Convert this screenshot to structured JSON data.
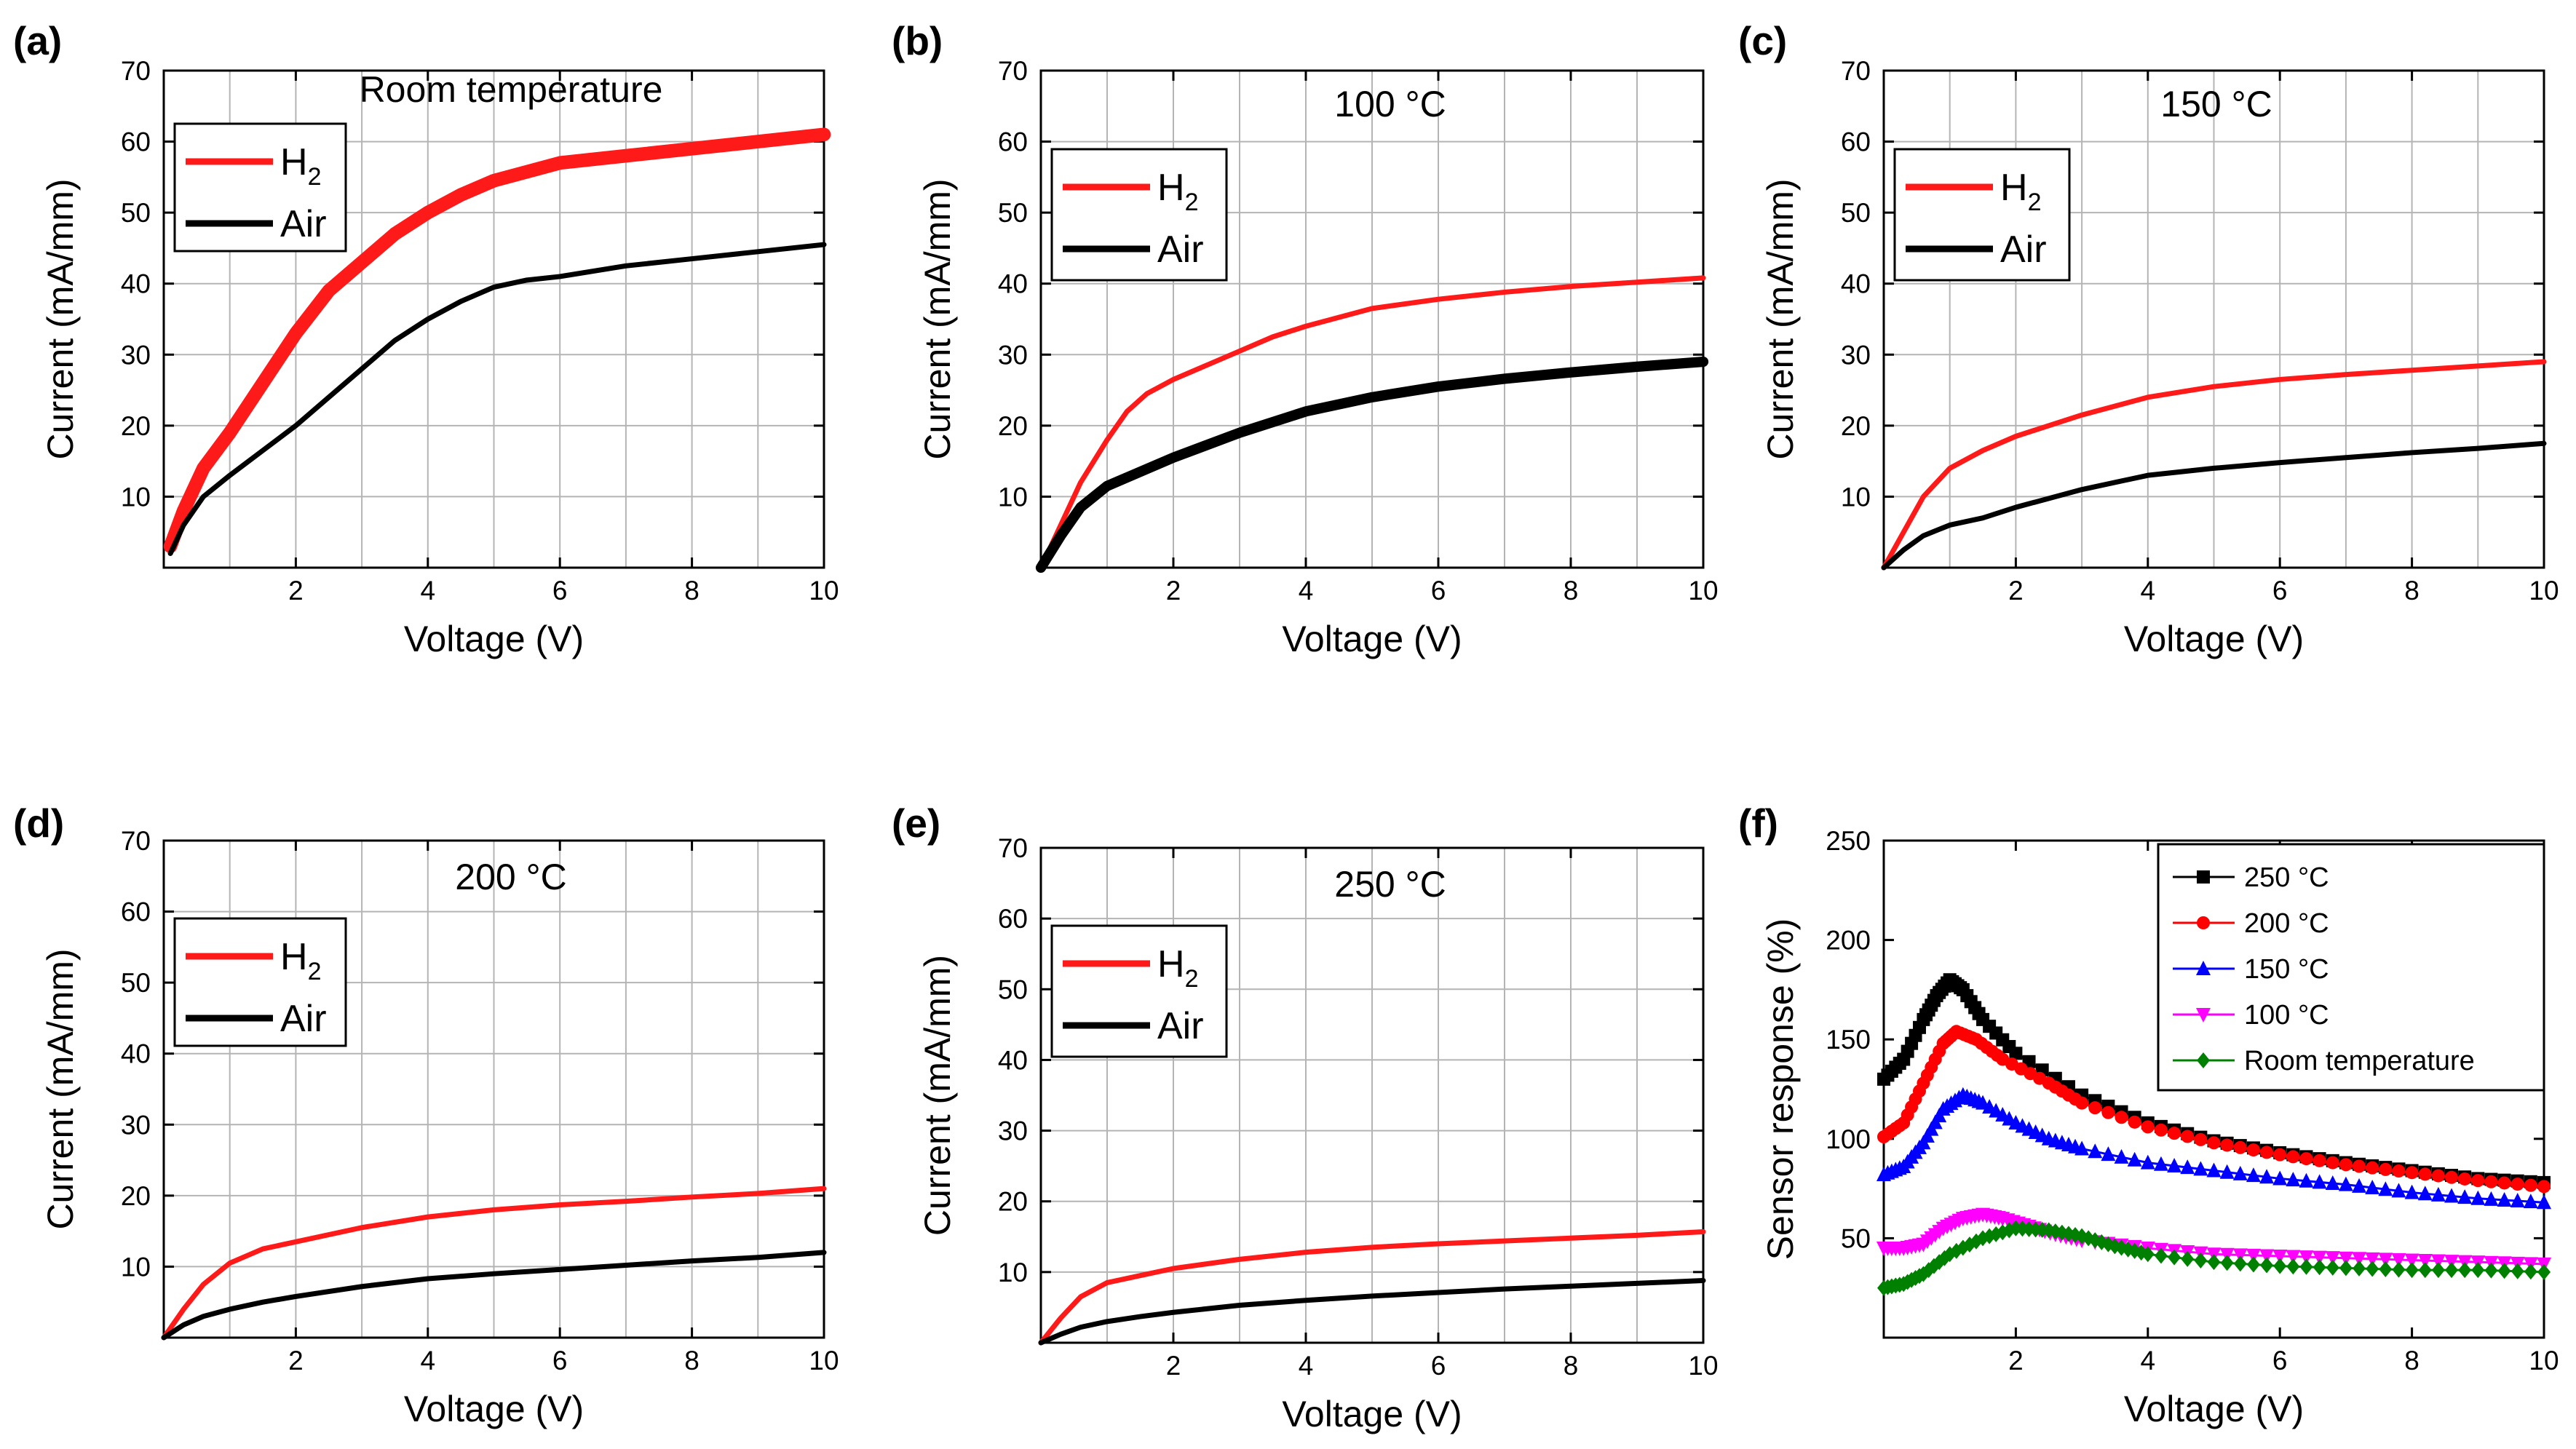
{
  "figure": {
    "panels": [
      "(a)",
      "(b)",
      "(c)",
      "(d)",
      "(e)",
      "(f)"
    ]
  },
  "chart_data": [
    {
      "panel": "(a)",
      "type": "line",
      "title": "Room temperature",
      "xlabel": "Voltage (V)",
      "ylabel": "Current (mA/mm)",
      "xlim": [
        0,
        10
      ],
      "ylim": [
        0,
        70
      ],
      "xticks": [
        "2",
        "4",
        "6",
        "8",
        "10"
      ],
      "yticks": [
        "10",
        "20",
        "30",
        "40",
        "50",
        "60",
        "70"
      ],
      "grid": true,
      "legend": [
        "H2",
        "Air"
      ],
      "series": [
        {
          "name": "H2",
          "color": "#ff1a1a",
          "band": 1.3,
          "x": [
            0.1,
            0.3,
            0.6,
            1,
            1.5,
            2,
            2.5,
            3,
            3.5,
            4,
            4.5,
            5,
            6,
            7,
            8,
            9,
            10
          ],
          "y": [
            3,
            8,
            14,
            19,
            26,
            33,
            39,
            43,
            47,
            50,
            52.5,
            54.5,
            57,
            58,
            59,
            60,
            61
          ]
        },
        {
          "name": "Air",
          "color": "#000000",
          "band": 0,
          "x": [
            0.1,
            0.3,
            0.6,
            1,
            1.5,
            2,
            2.5,
            3,
            3.5,
            4,
            4.5,
            5,
            5.5,
            6,
            7,
            8,
            9,
            10
          ],
          "y": [
            2,
            6,
            10,
            13,
            16.5,
            20,
            24,
            28,
            32,
            35,
            37.5,
            39.5,
            40.5,
            41,
            42.5,
            43.5,
            44.5,
            45.5
          ]
        }
      ]
    },
    {
      "panel": "(b)",
      "type": "line",
      "title": "100 °C",
      "xlabel": "Voltage (V)",
      "ylabel": "Current (mA/mm)",
      "xlim": [
        0,
        10
      ],
      "ylim": [
        0,
        70
      ],
      "xticks": [
        "2",
        "4",
        "6",
        "8",
        "10"
      ],
      "yticks": [
        "10",
        "20",
        "30",
        "40",
        "50",
        "60",
        "70"
      ],
      "grid": true,
      "legend": [
        "H2",
        "Air"
      ],
      "series": [
        {
          "name": "H2",
          "color": "#ff1a1a",
          "band": 0,
          "x": [
            0,
            0.3,
            0.6,
            1,
            1.3,
            1.6,
            2,
            2.5,
            3,
            3.5,
            4,
            5,
            6,
            7,
            8,
            9,
            10
          ],
          "y": [
            0,
            6,
            12,
            18,
            22,
            24.5,
            26.5,
            28.5,
            30.5,
            32.5,
            34,
            36.5,
            37.8,
            38.8,
            39.6,
            40.2,
            40.8
          ]
        },
        {
          "name": "Air",
          "color": "#000000",
          "band": 0.8,
          "x": [
            0,
            0.3,
            0.6,
            1,
            1.5,
            2,
            3,
            4,
            5,
            6,
            7,
            8,
            9,
            10
          ],
          "y": [
            0,
            4.5,
            8.5,
            11.5,
            13.5,
            15.5,
            19,
            22,
            24,
            25.5,
            26.6,
            27.5,
            28.3,
            29
          ]
        }
      ]
    },
    {
      "panel": "(c)",
      "type": "line",
      "title": "150 °C",
      "xlabel": "Voltage (V)",
      "ylabel": "Current (mA/mm)",
      "xlim": [
        0,
        10
      ],
      "ylim": [
        0,
        70
      ],
      "xticks": [
        "2",
        "4",
        "6",
        "8",
        "10"
      ],
      "yticks": [
        "10",
        "20",
        "30",
        "40",
        "50",
        "60",
        "70"
      ],
      "grid": true,
      "legend": [
        "H2",
        "Air"
      ],
      "series": [
        {
          "name": "H2",
          "color": "#ff1a1a",
          "band": 0,
          "x": [
            0,
            0.3,
            0.6,
            1,
            1.5,
            2,
            3,
            4,
            5,
            6,
            7,
            8,
            9,
            10
          ],
          "y": [
            0,
            5,
            10,
            14,
            16.5,
            18.5,
            21.5,
            24,
            25.5,
            26.5,
            27.2,
            27.8,
            28.4,
            29
          ]
        },
        {
          "name": "Air",
          "color": "#000000",
          "band": 0,
          "x": [
            0,
            0.3,
            0.6,
            1,
            1.5,
            2,
            3,
            4,
            5,
            6,
            7,
            8,
            9,
            10
          ],
          "y": [
            0,
            2.5,
            4.5,
            6,
            7,
            8.5,
            11,
            13,
            14,
            14.8,
            15.5,
            16.2,
            16.8,
            17.5
          ]
        }
      ]
    },
    {
      "panel": "(d)",
      "type": "line",
      "title": "200 °C",
      "xlabel": "Voltage (V)",
      "ylabel": "Current (mA/mm)",
      "xlim": [
        0,
        10
      ],
      "ylim": [
        0,
        70
      ],
      "xticks": [
        "2",
        "4",
        "6",
        "8",
        "10"
      ],
      "yticks": [
        "10",
        "20",
        "30",
        "40",
        "50",
        "60",
        "70"
      ],
      "grid": true,
      "legend": [
        "H2",
        "Air"
      ],
      "series": [
        {
          "name": "H2",
          "color": "#ff1a1a",
          "band": 0,
          "x": [
            0,
            0.3,
            0.6,
            1,
            1.5,
            2,
            3,
            4,
            5,
            6,
            7,
            8,
            9,
            10
          ],
          "y": [
            0,
            4,
            7.5,
            10.5,
            12.5,
            13.5,
            15.5,
            17,
            18,
            18.7,
            19.2,
            19.8,
            20.3,
            21
          ]
        },
        {
          "name": "Air",
          "color": "#000000",
          "band": 0,
          "x": [
            0,
            0.3,
            0.6,
            1,
            1.5,
            2,
            3,
            4,
            5,
            6,
            7,
            8,
            9,
            10
          ],
          "y": [
            0,
            1.8,
            3,
            4,
            5,
            5.8,
            7.2,
            8.3,
            9,
            9.6,
            10.2,
            10.8,
            11.3,
            12
          ]
        }
      ]
    },
    {
      "panel": "(e)",
      "type": "line",
      "title": "250 °C",
      "xlabel": "Voltage (V)",
      "ylabel": "Current (mA/mm)",
      "xlim": [
        0,
        10
      ],
      "ylim": [
        0,
        70
      ],
      "xticks": [
        "2",
        "4",
        "6",
        "8",
        "10"
      ],
      "yticks": [
        "10",
        "20",
        "30",
        "40",
        "50",
        "60",
        "70"
      ],
      "grid": true,
      "legend": [
        "H2",
        "Air"
      ],
      "series": [
        {
          "name": "H2",
          "color": "#ff1a1a",
          "band": 0,
          "x": [
            0,
            0.3,
            0.6,
            1,
            1.5,
            2,
            3,
            4,
            5,
            6,
            7,
            8,
            9,
            10
          ],
          "y": [
            0,
            3.5,
            6.5,
            8.5,
            9.5,
            10.5,
            11.8,
            12.8,
            13.5,
            14,
            14.4,
            14.8,
            15.2,
            15.7
          ]
        },
        {
          "name": "Air",
          "color": "#000000",
          "band": 0,
          "x": [
            0,
            0.3,
            0.6,
            1,
            1.5,
            2,
            3,
            4,
            5,
            6,
            7,
            8,
            9,
            10
          ],
          "y": [
            0,
            1.2,
            2.2,
            3,
            3.7,
            4.3,
            5.3,
            6,
            6.6,
            7.1,
            7.6,
            8,
            8.4,
            8.8
          ]
        }
      ]
    },
    {
      "panel": "(f)",
      "type": "scatter",
      "title": "",
      "xlabel": "Voltage (V)",
      "ylabel": "Sensor response (%)",
      "xlim": [
        0,
        10
      ],
      "ylim": [
        0,
        250
      ],
      "xticks": [
        "2",
        "4",
        "6",
        "8",
        "10"
      ],
      "yticks": [
        "50",
        "100",
        "150",
        "200",
        "250"
      ],
      "grid": false,
      "legend": [
        "250 °C",
        "200 °C",
        "150 °C",
        "100 °C",
        "Room temperature"
      ],
      "series": [
        {
          "name": "250 °C",
          "color": "#000000",
          "marker": "square",
          "x": [
            0,
            0.3,
            0.6,
            0.8,
            1,
            1.2,
            1.5,
            2,
            3,
            4,
            5,
            6,
            7,
            8,
            9,
            10
          ],
          "y": [
            130,
            140,
            160,
            172,
            180,
            175,
            160,
            143,
            122,
            108,
            99,
            93,
            88,
            84,
            80,
            78
          ]
        },
        {
          "name": "200 °C",
          "color": "#ff0000",
          "marker": "circle",
          "x": [
            0,
            0.3,
            0.6,
            0.9,
            1.1,
            1.4,
            1.8,
            2.5,
            3,
            4,
            5,
            6,
            7,
            8,
            9,
            10
          ],
          "y": [
            101,
            108,
            128,
            148,
            154,
            150,
            140,
            128,
            118,
            106,
            98,
            92,
            87,
            83,
            79,
            76
          ]
        },
        {
          "name": "150 °C",
          "color": "#0000ff",
          "marker": "triangle-up",
          "x": [
            0,
            0.3,
            0.6,
            0.9,
            1.2,
            1.5,
            2,
            2.5,
            3,
            4,
            5,
            6,
            7,
            8,
            9,
            10
          ],
          "y": [
            82,
            86,
            98,
            115,
            122,
            118,
            108,
            100,
            95,
            88,
            84,
            80,
            77,
            73,
            70,
            68
          ]
        },
        {
          "name": "100 °C",
          "color": "#ff00ff",
          "marker": "triangle-down",
          "x": [
            0,
            0.3,
            0.6,
            0.9,
            1.2,
            1.5,
            1.8,
            2.2,
            2.6,
            3,
            4,
            5,
            6,
            7,
            8,
            9,
            10
          ],
          "y": [
            45,
            45,
            47,
            55,
            60,
            62,
            60,
            56,
            52,
            49,
            45,
            42,
            41,
            40,
            39,
            38,
            37
          ]
        },
        {
          "name": "Room temperature",
          "color": "#008000",
          "marker": "diamond",
          "x": [
            0,
            0.3,
            0.6,
            1,
            1.5,
            2,
            2.5,
            3,
            3.5,
            4,
            5,
            6,
            7,
            8,
            9,
            10
          ],
          "y": [
            25,
            27,
            32,
            42,
            50,
            55,
            54,
            51,
            46,
            42,
            38,
            36,
            35,
            34,
            34,
            33
          ]
        }
      ]
    }
  ]
}
